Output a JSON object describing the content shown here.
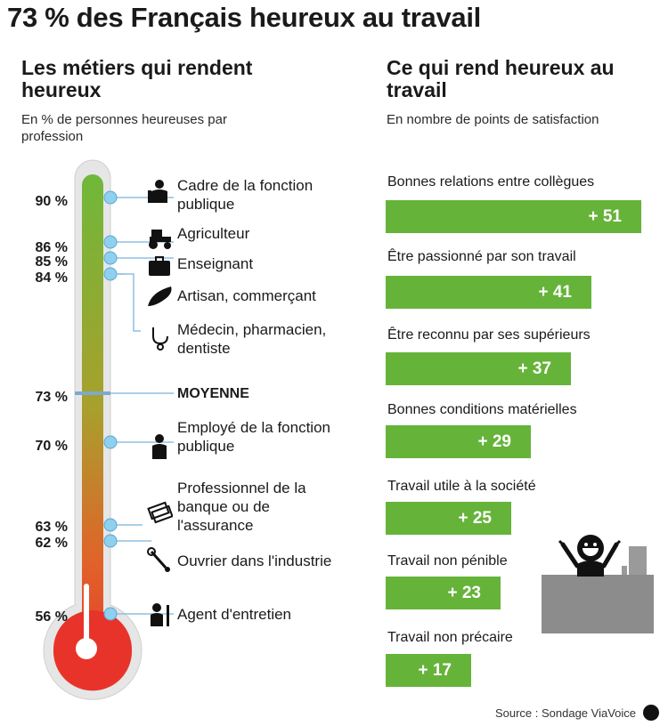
{
  "title": "73 % des Français heureux au travail",
  "left_panel": {
    "title": "Les métiers qui rendent heureux",
    "subtitle": "En % de personnes heureuses par profession",
    "average_label": "MOYENNE"
  },
  "right_panel": {
    "title": "Ce qui rend heureux au travail",
    "subtitle": "En nombre de points de satisfaction"
  },
  "source": "Source : Sondage ViaVoice",
  "colors": {
    "bar_green": "#66b33a",
    "thermo_top": "#6fb83a",
    "thermo_bottom": "#e8332a",
    "marker": "#8fd0ef"
  },
  "chart_data": [
    {
      "type": "bar",
      "orientation": "vertical-thermometer",
      "title": "Les métiers qui rendent heureux",
      "subtitle": "En % de personnes heureuses par profession",
      "unit": "%",
      "categories": [
        "Cadre de la fonction publique",
        "Agriculteur",
        "Enseignant",
        "Artisan, commerçant",
        "Médecin, pharmacien, dentiste",
        "MOYENNE",
        "Employé de la fonction publique",
        "Professionnel de la banque ou de l'assurance",
        "Ouvrier dans l'industrie",
        "Agent d'entretien"
      ],
      "values": [
        90,
        86,
        85,
        84,
        84,
        73,
        70,
        63,
        62,
        56
      ],
      "value_labels": [
        "90 %",
        "86 %",
        "85 %",
        "84 %",
        "",
        "73 %",
        "70 %",
        "63 %",
        "62 %",
        "56 %"
      ],
      "icons": [
        "manager-icon",
        "tractor-icon",
        "briefcase-icon",
        "bread-icon",
        "stethoscope-icon",
        "",
        "employee-icon",
        "banknotes-icon",
        "wrench-icon",
        "janitor-icon"
      ]
    },
    {
      "type": "bar",
      "orientation": "horizontal",
      "title": "Ce qui rend heureux au travail",
      "subtitle": "En nombre de points de satisfaction",
      "categories": [
        "Bonnes relations entre collègues",
        "Être passionné par son travail",
        "Être reconnu par ses supérieurs",
        "Bonnes conditions matérielles",
        "Travail utile à la société",
        "Travail non pénible",
        "Travail non précaire"
      ],
      "values": [
        51,
        41,
        37,
        29,
        25,
        23,
        17
      ],
      "value_labels": [
        "+ 51",
        "+ 41",
        "+ 37",
        "+ 29",
        "+ 25",
        "+ 23",
        "+ 17"
      ]
    }
  ]
}
